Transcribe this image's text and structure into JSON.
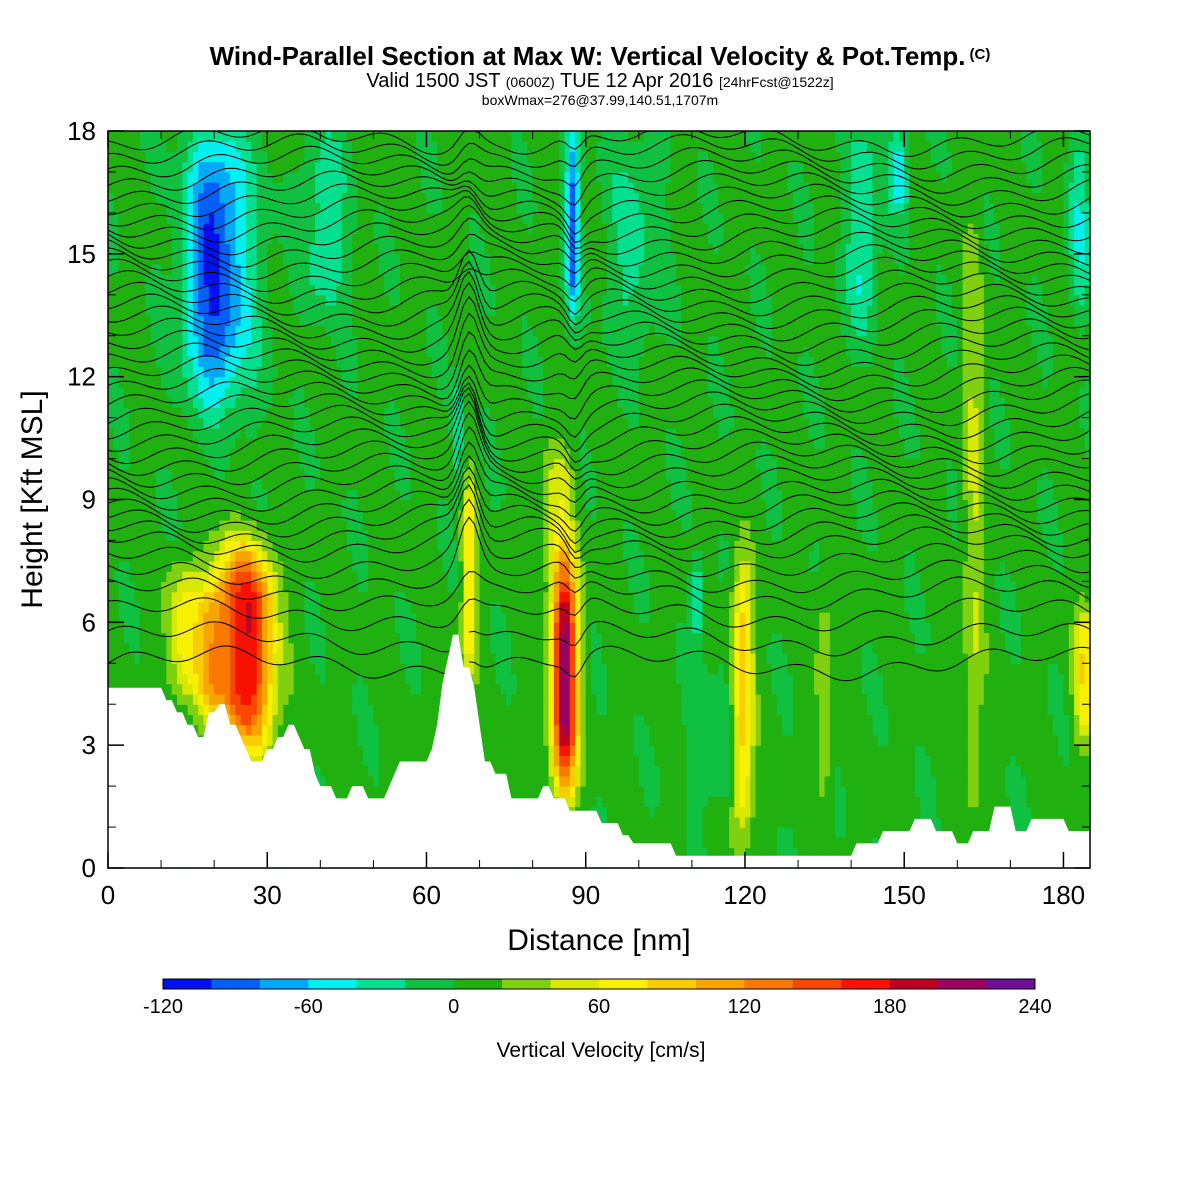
{
  "header": {
    "title": "Wind-Parallel Section at Max W: Vertical Velocity & Pot.Temp.",
    "title_mark": "(C)",
    "valid_prefix": "Valid 1500 JST",
    "valid_utc": "(0600Z)",
    "valid_date": "TUE 12 Apr 2016",
    "forecast_tag": "[24hrFcst@1522z]",
    "box_info": "boxWmax=276@37.99,140.51,1707m"
  },
  "chart_data": {
    "type": "heatmap",
    "title": "Wind-Parallel Section at Max W: Vertical Velocity & Pot.Temp.",
    "xlabel": "Distance [nm]",
    "ylabel": "Height [Kft MSL]",
    "xlim": [
      0,
      185
    ],
    "ylim": [
      0,
      18
    ],
    "x_ticks": [
      0,
      30,
      60,
      90,
      120,
      150,
      180
    ],
    "y_ticks": [
      0,
      3,
      6,
      9,
      12,
      15,
      18
    ],
    "x_tick_labels": [
      "0",
      "30",
      "60",
      "90",
      "120",
      "150",
      "180"
    ],
    "y_tick_labels": [
      "0",
      "3",
      "6",
      "9",
      "12",
      "15",
      "18"
    ],
    "background_value": 5,
    "features": [
      {
        "x": 14,
        "y_bottom": 4.0,
        "y_top": 7.5,
        "width": 3,
        "value": 55
      },
      {
        "x": 19,
        "y_bottom": 3.8,
        "y_top": 7.0,
        "width": 3,
        "value": 60
      },
      {
        "x": 24,
        "y_bottom": 3.0,
        "y_top": 8.0,
        "width": 5,
        "value": 120
      },
      {
        "x": 28,
        "y_bottom": 2.8,
        "y_top": 7.8,
        "width": 4,
        "value": 90
      },
      {
        "x": 68,
        "y_bottom": 4.6,
        "y_top": 9.5,
        "width": 1.3,
        "value": 75
      },
      {
        "x": 86,
        "y_bottom": 1.8,
        "y_top": 7.5,
        "width": 2.4,
        "value": 210
      },
      {
        "x": 85,
        "y_bottom": 7.0,
        "y_top": 10.5,
        "width": 3,
        "value": 45
      },
      {
        "x": 119.5,
        "y_bottom": 0.8,
        "y_top": 7.5,
        "width": 2,
        "value": 95
      },
      {
        "x": 184,
        "y_bottom": 3.0,
        "y_top": 6.5,
        "width": 2,
        "value": 70
      },
      {
        "x": 163,
        "y_bottom": 1.0,
        "y_top": 16.0,
        "width": 2,
        "value": 35
      },
      {
        "x": 135,
        "y_bottom": 1.5,
        "y_top": 7.0,
        "width": 1.5,
        "value": 35
      },
      {
        "x": 19,
        "y_bottom": 11.5,
        "y_top": 18,
        "width": 5,
        "value": -75
      },
      {
        "x": 23,
        "y_bottom": 11.0,
        "y_top": 18,
        "width": 6,
        "value": -45
      },
      {
        "x": 41,
        "y_bottom": 13.5,
        "y_top": 18,
        "width": 4,
        "value": -40
      },
      {
        "x": 87.5,
        "y_bottom": 13.5,
        "y_top": 18,
        "width": 1.3,
        "value": -90
      },
      {
        "x": 99,
        "y_bottom": 12.5,
        "y_top": 18,
        "width": 5,
        "value": -30
      },
      {
        "x": 111,
        "y_bottom": 5.5,
        "y_top": 7.5,
        "width": 1.2,
        "value": -45
      },
      {
        "x": 115,
        "y_bottom": 1.5,
        "y_top": 5.0,
        "width": 5,
        "value": -25
      },
      {
        "x": 142,
        "y_bottom": 13.0,
        "y_top": 18,
        "width": 3,
        "value": -45
      },
      {
        "x": 149,
        "y_bottom": 16.0,
        "y_top": 18,
        "width": 2,
        "value": -55
      },
      {
        "x": 183,
        "y_bottom": 13.5,
        "y_top": 18,
        "width": 2,
        "value": -40
      },
      {
        "x": 66,
        "y_bottom": 9.0,
        "y_top": 12.0,
        "width": 1,
        "value": -40
      }
    ],
    "terrain_profile": [
      [
        0,
        4.4
      ],
      [
        10,
        4.4
      ],
      [
        11,
        4.1
      ],
      [
        12,
        4.1
      ],
      [
        13,
        3.8
      ],
      [
        14,
        3.8
      ],
      [
        15,
        3.5
      ],
      [
        16,
        3.5
      ],
      [
        17,
        3.2
      ],
      [
        18,
        3.2
      ],
      [
        19,
        3.8
      ],
      [
        20,
        3.8
      ],
      [
        21,
        4.0
      ],
      [
        22,
        4.0
      ],
      [
        23,
        3.5
      ],
      [
        24,
        3.5
      ],
      [
        25,
        3.2
      ],
      [
        26,
        2.9
      ],
      [
        27,
        2.6
      ],
      [
        29,
        2.6
      ],
      [
        30,
        2.9
      ],
      [
        31,
        2.9
      ],
      [
        32,
        3.2
      ],
      [
        33,
        3.2
      ],
      [
        34,
        3.5
      ],
      [
        35,
        3.5
      ],
      [
        36,
        3.2
      ],
      [
        37,
        2.9
      ],
      [
        38,
        2.9
      ],
      [
        39,
        2.3
      ],
      [
        40,
        2.0
      ],
      [
        42,
        2.0
      ],
      [
        43,
        1.7
      ],
      [
        45,
        1.7
      ],
      [
        46,
        2.0
      ],
      [
        48,
        2.0
      ],
      [
        49,
        1.7
      ],
      [
        52,
        1.7
      ],
      [
        53,
        2.0
      ],
      [
        54,
        2.3
      ],
      [
        55,
        2.6
      ],
      [
        60,
        2.6
      ],
      [
        61,
        2.9
      ],
      [
        62,
        3.5
      ],
      [
        63,
        4.5
      ],
      [
        64,
        5.1
      ],
      [
        65,
        5.7
      ],
      [
        66,
        5.7
      ],
      [
        67,
        4.9
      ],
      [
        68,
        4.9
      ],
      [
        69,
        4.4
      ],
      [
        70,
        3.5
      ],
      [
        71,
        2.6
      ],
      [
        72,
        2.6
      ],
      [
        73,
        2.3
      ],
      [
        75,
        2.3
      ],
      [
        76,
        1.7
      ],
      [
        81,
        1.7
      ],
      [
        82,
        2.0
      ],
      [
        83,
        2.0
      ],
      [
        84,
        1.7
      ],
      [
        86,
        1.7
      ],
      [
        87,
        1.4
      ],
      [
        92,
        1.4
      ],
      [
        93,
        1.1
      ],
      [
        96,
        1.1
      ],
      [
        97,
        0.8
      ],
      [
        98,
        0.8
      ],
      [
        99,
        0.6
      ],
      [
        106,
        0.6
      ],
      [
        107,
        0.3
      ],
      [
        120,
        0.3
      ],
      [
        121,
        0.3
      ],
      [
        127,
        0.3
      ],
      [
        128,
        0.3
      ],
      [
        135,
        0.3
      ],
      [
        140,
        0.3
      ],
      [
        141,
        0.6
      ],
      [
        145,
        0.6
      ],
      [
        146,
        0.9
      ],
      [
        151,
        0.9
      ],
      [
        152,
        1.2
      ],
      [
        155,
        1.2
      ],
      [
        156,
        0.9
      ],
      [
        159,
        0.9
      ],
      [
        160,
        0.6
      ],
      [
        162,
        0.6
      ],
      [
        163,
        0.9
      ],
      [
        166,
        0.9
      ],
      [
        167,
        1.5
      ],
      [
        170,
        1.5
      ],
      [
        171,
        0.9
      ],
      [
        173,
        0.9
      ],
      [
        174,
        1.2
      ],
      [
        180,
        1.2
      ],
      [
        181,
        0.9
      ],
      [
        185,
        0.9
      ]
    ],
    "theta_contours": {
      "interval_c": 0.5,
      "base_heights": [
        5.0,
        5.6,
        6.2,
        6.7,
        7.1,
        7.5,
        7.9,
        8.2,
        8.5,
        8.8,
        9.1,
        9.4,
        9.7,
        10.0,
        10.3,
        10.6,
        10.9,
        11.2,
        11.5,
        11.8,
        12.1,
        12.4,
        12.7,
        13.0,
        13.3,
        13.6,
        13.9,
        14.2,
        14.5,
        14.8,
        15.1,
        15.4,
        15.7,
        16.0,
        16.3,
        16.6,
        16.9,
        17.2,
        17.5,
        17.8
      ]
    },
    "colorbar": {
      "label": "Vertical Velocity [cm/s]",
      "min": -120,
      "max": 240,
      "step": 20,
      "tick_values": [
        -120,
        -60,
        0,
        60,
        120,
        180,
        240
      ],
      "tick_labels": [
        "-120",
        "-60",
        "0",
        "60",
        "120",
        "180",
        "240"
      ],
      "colors": [
        "#0010f0",
        "#0060f8",
        "#00a8f8",
        "#00f0f0",
        "#00e090",
        "#10c040",
        "#20b010",
        "#80d010",
        "#d8e800",
        "#f8f000",
        "#f8cc00",
        "#f8a400",
        "#f87800",
        "#f84800",
        "#f81000",
        "#c00020",
        "#9c0060",
        "#6c1098"
      ]
    }
  },
  "theme": {
    "contour_color": "#000000",
    "terrain_color": "#ffffff",
    "frame_color": "#000000"
  }
}
